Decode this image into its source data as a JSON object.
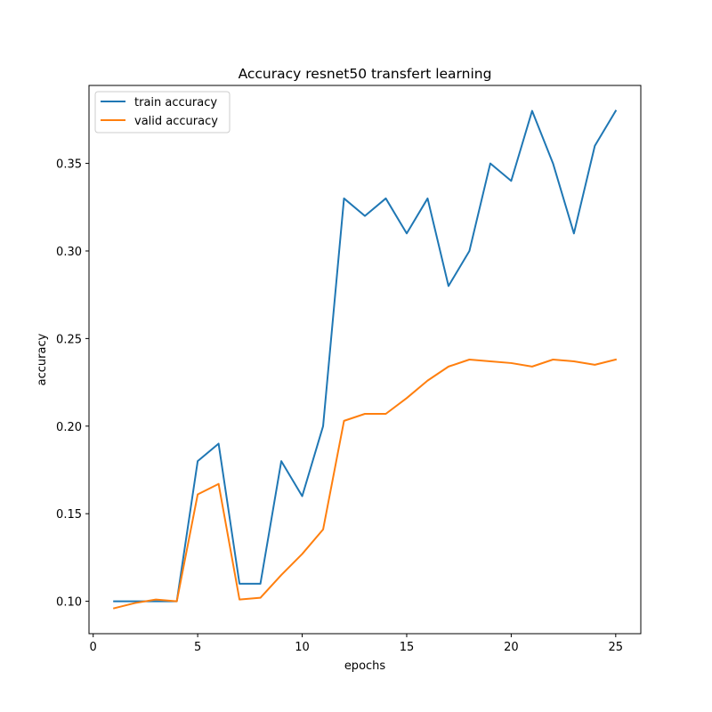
{
  "chart_data": {
    "type": "line",
    "title": "Accuracy resnet50 transfert learning",
    "xlabel": "epochs",
    "ylabel": "accuracy",
    "xlim": [
      -0.2,
      26.2
    ],
    "ylim": [
      0.0815,
      0.3945
    ],
    "xticks": [
      0,
      5,
      10,
      15,
      20,
      25
    ],
    "yticks": [
      0.1,
      0.15,
      0.2,
      0.25,
      0.3,
      0.35
    ],
    "ytick_labels": [
      "0.10",
      "0.15",
      "0.20",
      "0.25",
      "0.30",
      "0.35"
    ],
    "grid": false,
    "legend_position": "top-left",
    "x": [
      1,
      2,
      3,
      4,
      5,
      6,
      7,
      8,
      9,
      10,
      11,
      12,
      13,
      14,
      15,
      16,
      17,
      18,
      19,
      20,
      21,
      22,
      23,
      24,
      25
    ],
    "series": [
      {
        "name": "train accuracy",
        "color": "#1f77b4",
        "values": [
          0.1,
          0.1,
          0.1,
          0.1,
          0.18,
          0.19,
          0.11,
          0.11,
          0.18,
          0.16,
          0.2,
          0.33,
          0.32,
          0.33,
          0.31,
          0.33,
          0.28,
          0.3,
          0.35,
          0.34,
          0.38,
          0.35,
          0.31,
          0.36,
          0.38
        ]
      },
      {
        "name": "valid accuracy",
        "color": "#ff7f0e",
        "values": [
          0.096,
          0.099,
          0.101,
          0.1,
          0.161,
          0.167,
          0.101,
          0.102,
          0.115,
          0.127,
          0.141,
          0.203,
          0.207,
          0.207,
          0.216,
          0.226,
          0.234,
          0.238,
          0.237,
          0.236,
          0.234,
          0.238,
          0.237,
          0.235,
          0.238
        ]
      }
    ]
  }
}
